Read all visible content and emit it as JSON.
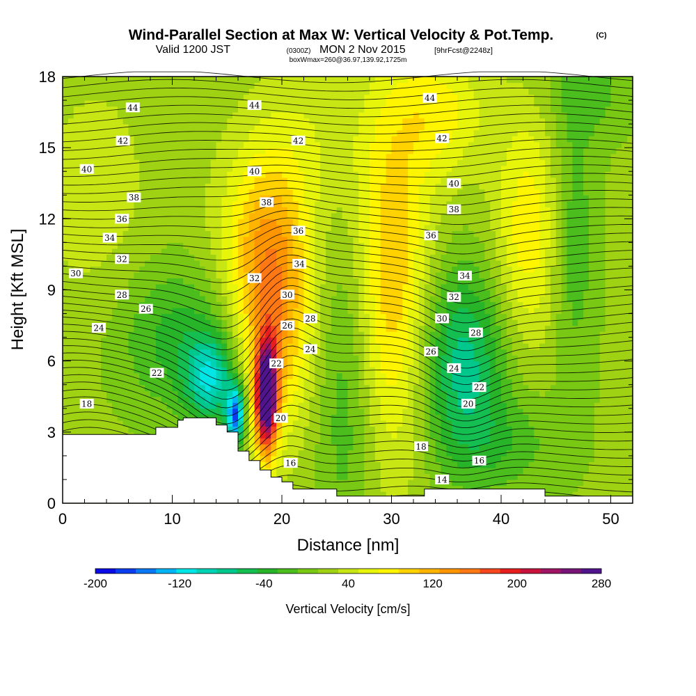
{
  "titles": {
    "main": "Wind-Parallel Section at Max W: Vertical Velocity & Pot.Temp.",
    "main_mark": "(C)",
    "valid_prefix": "Valid 1200 JST",
    "valid_utc": "(0300Z)",
    "valid_date": "MON 2 Nov 2015",
    "forecast": "[9hrFcst@2248z]",
    "boxmax": "boxWmax=260@36.97,139.92,1725m"
  },
  "chart_data": {
    "type": "heatmap",
    "xlabel": "Distance [nm]",
    "ylabel": "Height [Kft MSL]",
    "xlim": [
      0,
      52
    ],
    "ylim": [
      0,
      18
    ],
    "xticks": [
      0,
      10,
      20,
      30,
      40,
      50
    ],
    "yticks": [
      0,
      3,
      6,
      9,
      12,
      15,
      18
    ],
    "colorbar": {
      "title": "Vertical Velocity [cm/s]",
      "min": -200,
      "max": 280,
      "step": 20,
      "tick_labels": [
        "-200",
        "-120",
        "-40",
        "40",
        "120",
        "200",
        "280"
      ],
      "colors": [
        "#0a0ae6",
        "#0a3cf0",
        "#0a78f5",
        "#00b4f5",
        "#00e6e6",
        "#00d2b4",
        "#00c88c",
        "#14be50",
        "#28b428",
        "#4bbe1e",
        "#78c814",
        "#a0d214",
        "#c8e614",
        "#e6f50a",
        "#fff500",
        "#ffd200",
        "#ffb400",
        "#ff9600",
        "#ff7814",
        "#f5461e",
        "#e61e1e",
        "#c8143c",
        "#a01464",
        "#781478",
        "#50148c"
      ]
    },
    "terrain_profile_x": [
      0,
      8.5,
      8.5,
      10.5,
      10.5,
      11,
      11,
      14,
      14,
      15,
      15,
      16,
      16,
      17,
      17,
      18,
      18,
      19,
      19,
      20,
      20,
      21,
      21,
      25,
      25,
      28,
      28,
      33,
      33,
      37,
      37,
      44,
      44,
      52
    ],
    "terrain_profile_y": [
      2.9,
      2.9,
      3.2,
      3.2,
      3.5,
      3.5,
      3.6,
      3.6,
      3.3,
      3.3,
      3.0,
      3.0,
      2.2,
      2.2,
      1.8,
      1.8,
      1.4,
      1.4,
      1.1,
      1.1,
      0.9,
      0.9,
      0.6,
      0.6,
      0.3,
      0.3,
      0.3,
      0.3,
      0.6,
      0.6,
      0.6,
      0.6,
      0.3,
      0.3
    ],
    "updraft_cores": [
      {
        "x": 18.6,
        "z": 4.5,
        "w": 275,
        "sx": 0.7,
        "sz": 1.6
      },
      {
        "x": 19.2,
        "z": 8.0,
        "w": 120,
        "sx": 2.5,
        "sz": 3.5
      },
      {
        "x": 18.0,
        "z": 11.5,
        "w": 50,
        "sx": 3.0,
        "sz": 2.5
      },
      {
        "x": 30.0,
        "z": 9.5,
        "w": 95,
        "sx": 2.5,
        "sz": 5.5
      },
      {
        "x": 42.5,
        "z": 11.5,
        "w": 70,
        "sx": 2.2,
        "sz": 3.5
      },
      {
        "x": 34.5,
        "z": 16.5,
        "w": 60,
        "sx": 3.0,
        "sz": 2.0
      },
      {
        "x": 22.0,
        "z": 15.5,
        "w": 30,
        "sx": 4.0,
        "sz": 2.5
      },
      {
        "x": 3.0,
        "z": 13.0,
        "w": 25,
        "sx": 4.0,
        "sz": 4.0
      }
    ],
    "downdraft_cores": [
      {
        "x": 15.8,
        "z": 3.7,
        "w": -185,
        "sx": 0.6,
        "sz": 0.9
      },
      {
        "x": 13.5,
        "z": 5.2,
        "w": -110,
        "sx": 1.6,
        "sz": 1.3
      },
      {
        "x": 10.5,
        "z": 7.0,
        "w": -55,
        "sx": 4.0,
        "sz": 2.2
      },
      {
        "x": 36.5,
        "z": 6.0,
        "w": -95,
        "sx": 2.8,
        "sz": 2.8
      },
      {
        "x": 26.0,
        "z": 5.0,
        "w": -45,
        "sx": 2.0,
        "sz": 5.0
      },
      {
        "x": 46.5,
        "z": 11.0,
        "w": -45,
        "sx": 1.5,
        "sz": 4.0
      },
      {
        "x": 48.0,
        "z": 17.5,
        "w": -35,
        "sx": 2.5,
        "sz": 1.5
      },
      {
        "x": 40.0,
        "z": 2.5,
        "w": -35,
        "sx": 4.0,
        "sz": 1.5
      }
    ],
    "contour_labels": [
      {
        "text": "44",
        "x": 6.4,
        "z": 16.7
      },
      {
        "text": "44",
        "x": 17.5,
        "z": 16.8
      },
      {
        "text": "44",
        "x": 33.5,
        "z": 17.1
      },
      {
        "text": "42",
        "x": 5.5,
        "z": 15.3
      },
      {
        "text": "42",
        "x": 21.5,
        "z": 15.3
      },
      {
        "text": "42",
        "x": 34.6,
        "z": 15.4
      },
      {
        "text": "40",
        "x": 2.2,
        "z": 14.1
      },
      {
        "text": "40",
        "x": 17.5,
        "z": 14.0
      },
      {
        "text": "40",
        "x": 35.7,
        "z": 13.5
      },
      {
        "text": "38",
        "x": 6.5,
        "z": 12.9
      },
      {
        "text": "38",
        "x": 18.6,
        "z": 12.7
      },
      {
        "text": "38",
        "x": 35.7,
        "z": 12.4
      },
      {
        "text": "36",
        "x": 5.4,
        "z": 12.0
      },
      {
        "text": "36",
        "x": 21.5,
        "z": 11.5
      },
      {
        "text": "36",
        "x": 33.6,
        "z": 11.3
      },
      {
        "text": "34",
        "x": 4.3,
        "z": 11.2
      },
      {
        "text": "34",
        "x": 21.6,
        "z": 10.1
      },
      {
        "text": "34",
        "x": 36.7,
        "z": 9.6
      },
      {
        "text": "32",
        "x": 5.4,
        "z": 10.3
      },
      {
        "text": "32",
        "x": 17.5,
        "z": 9.5
      },
      {
        "text": "32",
        "x": 35.7,
        "z": 8.7
      },
      {
        "text": "30",
        "x": 1.2,
        "z": 9.7
      },
      {
        "text": "30",
        "x": 20.5,
        "z": 8.8
      },
      {
        "text": "30",
        "x": 34.6,
        "z": 7.8
      },
      {
        "text": "28",
        "x": 5.4,
        "z": 8.8
      },
      {
        "text": "28",
        "x": 22.6,
        "z": 7.8
      },
      {
        "text": "28",
        "x": 37.7,
        "z": 7.2
      },
      {
        "text": "26",
        "x": 7.6,
        "z": 8.2
      },
      {
        "text": "26",
        "x": 20.5,
        "z": 7.5
      },
      {
        "text": "26",
        "x": 33.6,
        "z": 6.4
      },
      {
        "text": "24",
        "x": 3.3,
        "z": 7.4
      },
      {
        "text": "24",
        "x": 22.6,
        "z": 6.5
      },
      {
        "text": "24",
        "x": 35.7,
        "z": 5.7
      },
      {
        "text": "22",
        "x": 8.6,
        "z": 5.5
      },
      {
        "text": "22",
        "x": 19.5,
        "z": 5.9
      },
      {
        "text": "22",
        "x": 38.0,
        "z": 4.9
      },
      {
        "text": "20",
        "x": 19.9,
        "z": 3.6
      },
      {
        "text": "20",
        "x": 37.0,
        "z": 4.2
      },
      {
        "text": "18",
        "x": 2.2,
        "z": 4.2
      },
      {
        "text": "18",
        "x": 32.7,
        "z": 2.4
      },
      {
        "text": "16",
        "x": 20.8,
        "z": 1.7
      },
      {
        "text": "16",
        "x": 38.0,
        "z": 1.8
      },
      {
        "text": "14",
        "x": 34.6,
        "z": 1.0
      }
    ]
  }
}
